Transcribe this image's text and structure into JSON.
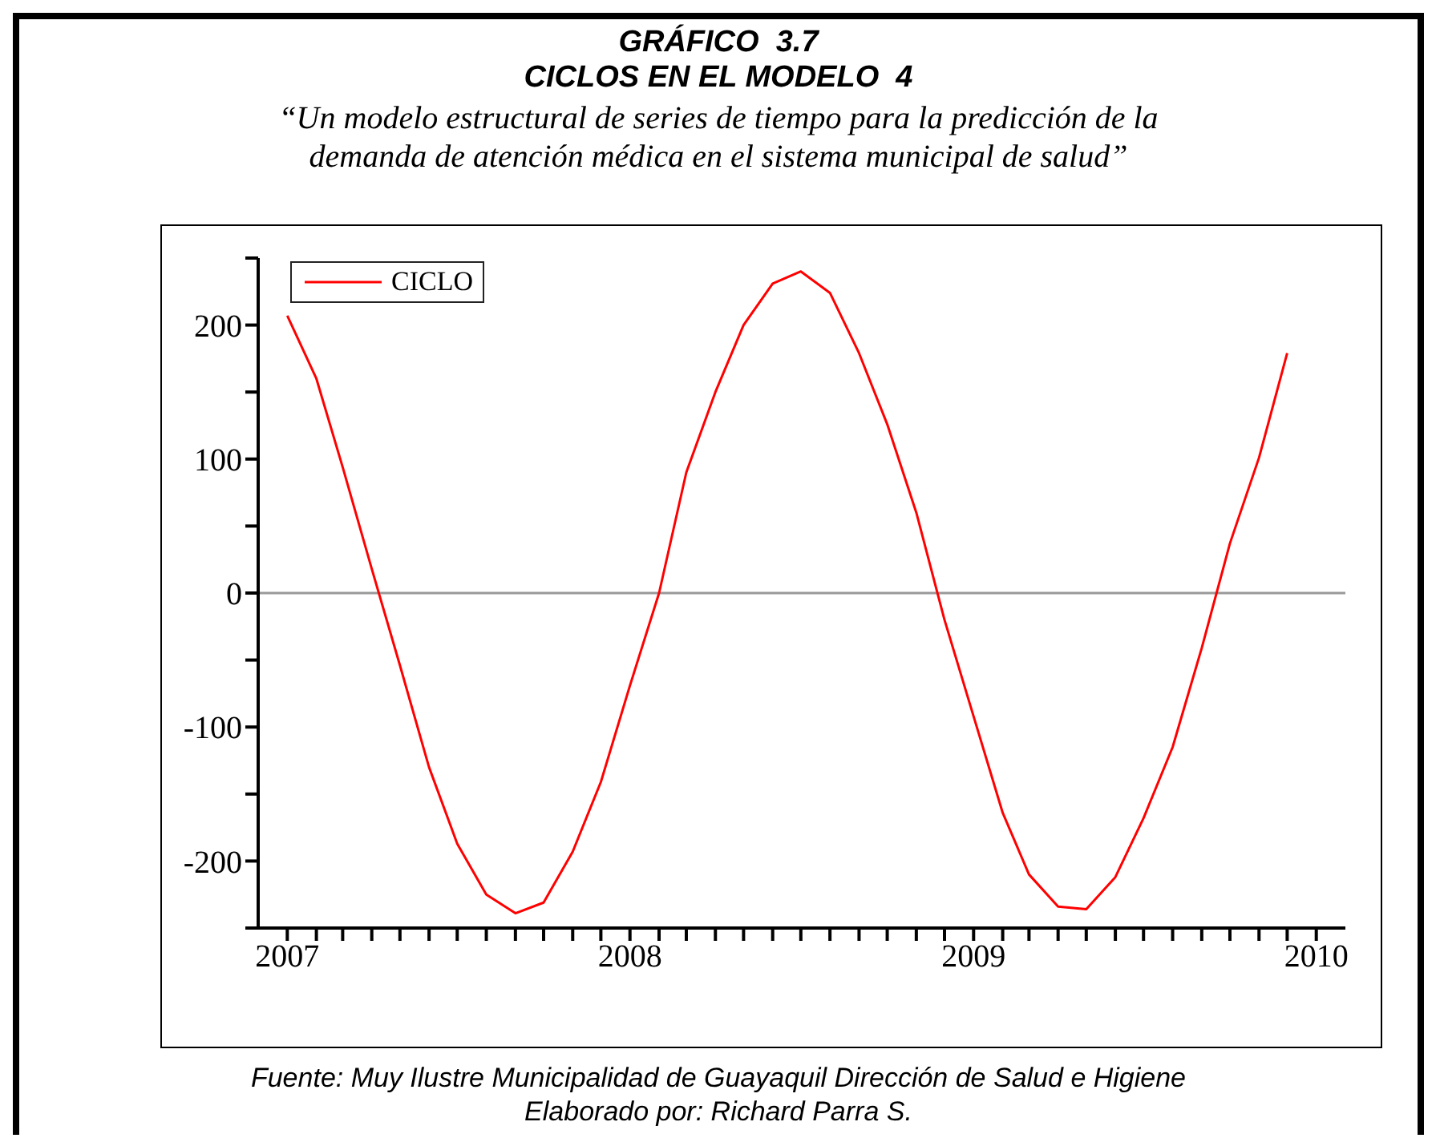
{
  "chart_data": {
    "type": "line",
    "title": "GRÁFICO  3.7\nCICLOS EN EL MODELO  4",
    "subtitle": "“Un modelo estructural de series de tiempo para la predicción de la demanda de atención médica en el sistema municipal de salud”",
    "x": [
      "2007-01",
      "2007-02",
      "2007-03",
      "2007-04",
      "2007-05",
      "2007-06",
      "2007-07",
      "2007-08",
      "2007-09",
      "2007-10",
      "2007-11",
      "2007-12",
      "2008-01",
      "2008-02",
      "2008-03",
      "2008-04",
      "2008-05",
      "2008-06",
      "2008-07",
      "2008-08",
      "2008-09",
      "2008-10",
      "2008-11",
      "2008-12",
      "2009-01",
      "2009-02",
      "2009-03",
      "2009-04",
      "2009-05",
      "2009-06",
      "2009-07",
      "2009-08",
      "2009-09",
      "2009-10",
      "2009-11",
      "2009-12"
    ],
    "series": [
      {
        "name": "CICLO",
        "color": "#ff0000",
        "values": [
          207,
          160,
          94,
          18,
          -54,
          -130,
          -187,
          -225,
          -239,
          -231,
          -193,
          -141,
          -69,
          0,
          90,
          150,
          200,
          231,
          240,
          224,
          179,
          126,
          60,
          -20,
          -92,
          -164,
          -210,
          -234,
          -236,
          -212,
          -168,
          -115,
          -41,
          37,
          101,
          179
        ]
      }
    ],
    "xlim": [
      "2006-12",
      "2010-02"
    ],
    "xticks": [
      {
        "value": "2007-01",
        "label": "2007"
      },
      {
        "value": "2007-02",
        "label": null
      },
      {
        "value": "2007-03",
        "label": null
      },
      {
        "value": "2007-04",
        "label": null
      },
      {
        "value": "2007-05",
        "label": null
      },
      {
        "value": "2007-06",
        "label": null
      },
      {
        "value": "2007-07",
        "label": null
      },
      {
        "value": "2007-08",
        "label": null
      },
      {
        "value": "2007-09",
        "label": null
      },
      {
        "value": "2007-10",
        "label": null
      },
      {
        "value": "2007-11",
        "label": null
      },
      {
        "value": "2007-12",
        "label": null
      },
      {
        "value": "2008-01",
        "label": "2008"
      },
      {
        "value": "2008-02",
        "label": null
      },
      {
        "value": "2008-03",
        "label": null
      },
      {
        "value": "2008-04",
        "label": null
      },
      {
        "value": "2008-05",
        "label": null
      },
      {
        "value": "2008-06",
        "label": null
      },
      {
        "value": "2008-07",
        "label": null
      },
      {
        "value": "2008-08",
        "label": null
      },
      {
        "value": "2008-09",
        "label": null
      },
      {
        "value": "2008-10",
        "label": null
      },
      {
        "value": "2008-11",
        "label": null
      },
      {
        "value": "2008-12",
        "label": null
      },
      {
        "value": "2009-01",
        "label": "2009"
      },
      {
        "value": "2009-02",
        "label": null
      },
      {
        "value": "2009-03",
        "label": null
      },
      {
        "value": "2009-04",
        "label": null
      },
      {
        "value": "2009-05",
        "label": null
      },
      {
        "value": "2009-06",
        "label": null
      },
      {
        "value": "2009-07",
        "label": null
      },
      {
        "value": "2009-08",
        "label": null
      },
      {
        "value": "2009-09",
        "label": null
      },
      {
        "value": "2009-10",
        "label": null
      },
      {
        "value": "2009-11",
        "label": null
      },
      {
        "value": "2009-12",
        "label": null
      },
      {
        "value": "2010-01",
        "label": "2010"
      }
    ],
    "ylim": [
      -250,
      250
    ],
    "yticks": [
      {
        "value": -250,
        "label": null
      },
      -200,
      {
        "value": -150,
        "label": null
      },
      -100,
      {
        "value": -50,
        "label": null
      },
      0,
      {
        "value": 50,
        "label": null
      },
      100,
      {
        "value": 150,
        "label": null
      },
      200,
      {
        "value": 250,
        "label": null
      }
    ],
    "ref_lines": [
      {
        "axis": "y",
        "value": 0,
        "color": "#999999"
      }
    ],
    "legend": "top left",
    "grid": false,
    "marker": "none",
    "line_style": "solid",
    "annotations": [
      "Fuente: Muy Ilustre Municipalidad de Guayaquil Dirección de Salud e Higiene",
      "Elaborado por: Richard Parra S."
    ]
  }
}
